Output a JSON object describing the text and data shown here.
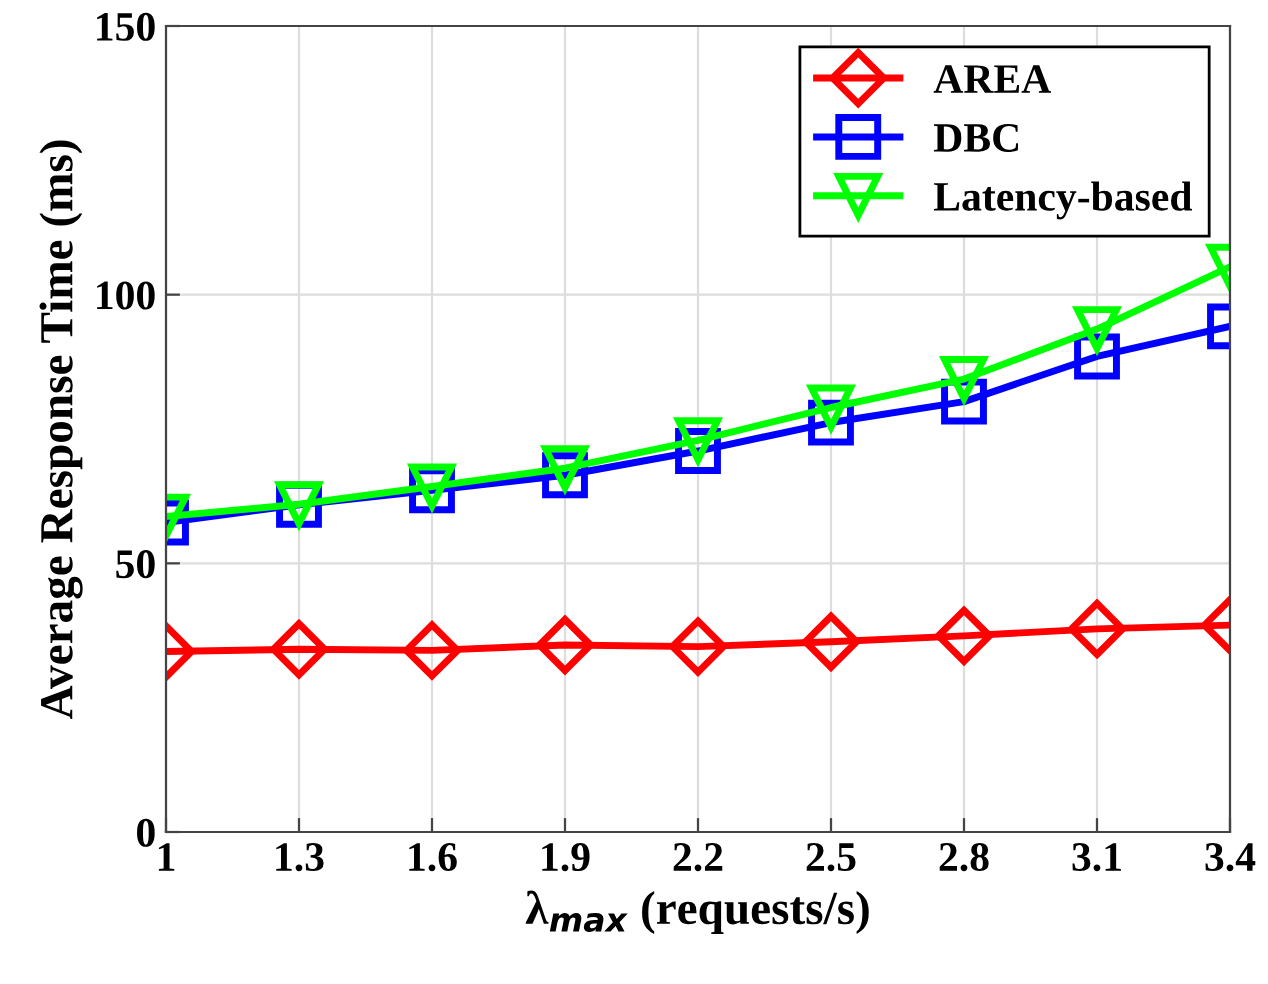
{
  "chart_data": {
    "type": "line",
    "xlabel": "λ$_{max}$ (requests/s)",
    "ylabel": "Average Response Time (ms)",
    "x": [
      1,
      1.3,
      1.6,
      1.9,
      2.2,
      2.5,
      2.8,
      3.1,
      3.4
    ],
    "xlim": [
      1,
      3.4
    ],
    "xticks": [
      1,
      1.3,
      1.6,
      1.9,
      2.2,
      2.5,
      2.8,
      3.1,
      3.4
    ],
    "ylim": [
      0,
      150
    ],
    "yticks": [
      0,
      50,
      100,
      150
    ],
    "grid": true,
    "legend": "top right",
    "series": [
      {
        "name": "AREA",
        "color": "#ff0000",
        "marker": "diamond",
        "values": [
          33.6,
          34.0,
          33.8,
          34.8,
          34.5,
          35.4,
          36.5,
          37.8,
          38.5
        ]
      },
      {
        "name": "DBC",
        "color": "#0000ff",
        "marker": "square",
        "values": [
          57.6,
          60.9,
          63.6,
          66.4,
          70.9,
          76.2,
          80.1,
          88.5,
          94.1
        ]
      },
      {
        "name": "Latency-based",
        "color": "#00ff00",
        "marker": "triangle",
        "values": [
          58.7,
          61.0,
          64.3,
          67.7,
          72.9,
          79.0,
          84.3,
          93.6,
          105.2
        ]
      }
    ]
  }
}
